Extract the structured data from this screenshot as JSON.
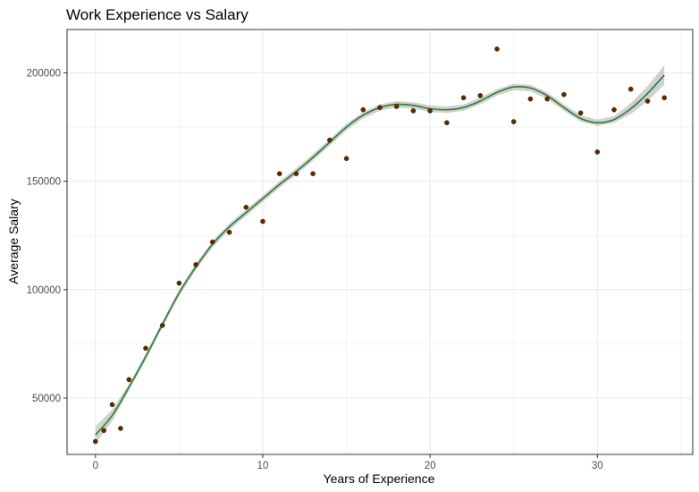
{
  "chart_data": {
    "type": "scatter",
    "title": "Work Experience vs Salary",
    "xlabel": "Years of Experience",
    "ylabel": "Average Salary",
    "xlim": [
      -1.7,
      35.7
    ],
    "ylim": [
      24000,
      220000
    ],
    "x_ticks": [
      0,
      10,
      20,
      30
    ],
    "x_tick_labels": [
      "0",
      "10",
      "20",
      "30"
    ],
    "y_ticks": [
      50000,
      100000,
      150000,
      200000
    ],
    "y_tick_labels": [
      "50000",
      "100000",
      "150000",
      "200000"
    ],
    "grid": true,
    "legend": "none",
    "colors": {
      "points": "#5c2a00",
      "smooth_line": "#2e7d32",
      "confidence_band": "#bdbdbd",
      "grid": "#ebebeb",
      "panel_border": "#333333"
    },
    "points": [
      {
        "x": 0,
        "y": 30000
      },
      {
        "x": 0.5,
        "y": 35000
      },
      {
        "x": 1,
        "y": 47000
      },
      {
        "x": 1.5,
        "y": 36000
      },
      {
        "x": 2,
        "y": 58500
      },
      {
        "x": 3,
        "y": 73000
      },
      {
        "x": 4,
        "y": 83500
      },
      {
        "x": 5,
        "y": 103000
      },
      {
        "x": 6,
        "y": 111500
      },
      {
        "x": 7,
        "y": 122000
      },
      {
        "x": 8,
        "y": 126500
      },
      {
        "x": 9,
        "y": 138000
      },
      {
        "x": 10,
        "y": 131500
      },
      {
        "x": 11,
        "y": 153500
      },
      {
        "x": 12,
        "y": 153500
      },
      {
        "x": 13,
        "y": 153500
      },
      {
        "x": 14,
        "y": 169000
      },
      {
        "x": 15,
        "y": 160500
      },
      {
        "x": 16,
        "y": 183000
      },
      {
        "x": 17,
        "y": 184000
      },
      {
        "x": 18,
        "y": 184500
      },
      {
        "x": 19,
        "y": 182500
      },
      {
        "x": 20,
        "y": 182500
      },
      {
        "x": 21,
        "y": 177000
      },
      {
        "x": 22,
        "y": 188500
      },
      {
        "x": 23,
        "y": 189500
      },
      {
        "x": 24,
        "y": 211000
      },
      {
        "x": 25,
        "y": 177500
      },
      {
        "x": 26,
        "y": 188000
      },
      {
        "x": 27,
        "y": 188000
      },
      {
        "x": 28,
        "y": 190000
      },
      {
        "x": 29,
        "y": 181500
      },
      {
        "x": 30,
        "y": 163500
      },
      {
        "x": 31,
        "y": 183000
      },
      {
        "x": 32,
        "y": 192500
      },
      {
        "x": 33,
        "y": 187000
      },
      {
        "x": 34,
        "y": 188500
      }
    ],
    "smooth_curve": [
      {
        "x": 0,
        "y": 33000
      },
      {
        "x": 1,
        "y": 42000
      },
      {
        "x": 2,
        "y": 55000
      },
      {
        "x": 3,
        "y": 69000
      },
      {
        "x": 4,
        "y": 84000
      },
      {
        "x": 5,
        "y": 98500
      },
      {
        "x": 6,
        "y": 110500
      },
      {
        "x": 7,
        "y": 121000
      },
      {
        "x": 8,
        "y": 129000
      },
      {
        "x": 9,
        "y": 135500
      },
      {
        "x": 10,
        "y": 142000
      },
      {
        "x": 11,
        "y": 148500
      },
      {
        "x": 12,
        "y": 154500
      },
      {
        "x": 13,
        "y": 161000
      },
      {
        "x": 14,
        "y": 168000
      },
      {
        "x": 15,
        "y": 175000
      },
      {
        "x": 16,
        "y": 180500
      },
      {
        "x": 17,
        "y": 184000
      },
      {
        "x": 18,
        "y": 185500
      },
      {
        "x": 19,
        "y": 185000
      },
      {
        "x": 20,
        "y": 183500
      },
      {
        "x": 21,
        "y": 183000
      },
      {
        "x": 22,
        "y": 184000
      },
      {
        "x": 23,
        "y": 187000
      },
      {
        "x": 24,
        "y": 191000
      },
      {
        "x": 25,
        "y": 193500
      },
      {
        "x": 26,
        "y": 193000
      },
      {
        "x": 27,
        "y": 189500
      },
      {
        "x": 28,
        "y": 184000
      },
      {
        "x": 29,
        "y": 179000
      },
      {
        "x": 30,
        "y": 177000
      },
      {
        "x": 31,
        "y": 178500
      },
      {
        "x": 32,
        "y": 183500
      },
      {
        "x": 33,
        "y": 190500
      },
      {
        "x": 34,
        "y": 199000
      }
    ]
  }
}
